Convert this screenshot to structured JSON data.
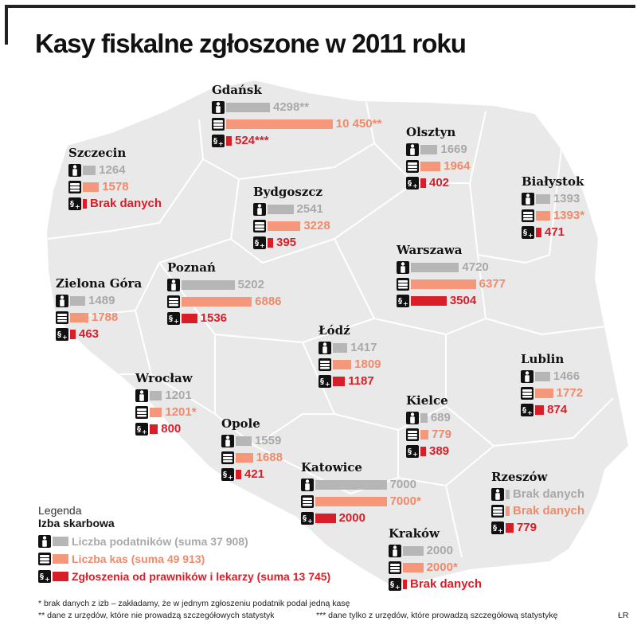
{
  "title": "Kasy fiskalne zgłoszone w 2011 roku",
  "author": "ŁR",
  "colors": {
    "taxpayers": "#b6b6b6",
    "registers": "#f4977a",
    "reports": "#d81e28",
    "map": "#e9e9e9"
  },
  "legend": {
    "title": "Legenda",
    "subtitle": "Izba skarbowa",
    "items": [
      {
        "icon": "person-icon",
        "label": "Liczba podatników (suma 37 908)"
      },
      {
        "icon": "register-icon",
        "label": "Liczba kas (suma 49 913)"
      },
      {
        "icon": "report-icon",
        "label": "Zgłoszenia od prawników i lekarzy (suma 13 745)"
      }
    ]
  },
  "footnotes": [
    "* brak danych z izb – zakładamy, że w jednym zgłoszeniu podatnik podał jedną kasę",
    "** dane z urzędów, które nie prowadzą szczegółowych statystyk",
    "*** dane tylko z urzędów, które prowadzą szczegółową statystykę"
  ],
  "chart_data": {
    "type": "bar",
    "title": "Kasy fiskalne zgłoszone w 2011 roku",
    "series_legend": [
      "Liczba podatników (suma 37 908)",
      "Liczba kas (suma 49 913)",
      "Zgłoszenia od prawników i lekarzy (suma 13 745)"
    ],
    "cities": [
      {
        "name": "Gdańsk",
        "taxpayers": 4298,
        "taxpayers_label": "4298**",
        "registers": 10450,
        "registers_label": "10 450**",
        "reports": 524,
        "reports_label": "524***"
      },
      {
        "name": "Olsztyn",
        "taxpayers": 1669,
        "taxpayers_label": "1669",
        "registers": 1964,
        "registers_label": "1964",
        "reports": 402,
        "reports_label": "402"
      },
      {
        "name": "Szczecin",
        "taxpayers": 1264,
        "taxpayers_label": "1264",
        "registers": 1578,
        "registers_label": "1578",
        "reports": null,
        "reports_label": "Brak danych"
      },
      {
        "name": "Białystok",
        "taxpayers": 1393,
        "taxpayers_label": "1393",
        "registers": 1393,
        "registers_label": "1393*",
        "reports": 471,
        "reports_label": "471"
      },
      {
        "name": "Bydgoszcz",
        "taxpayers": 2541,
        "taxpayers_label": "2541",
        "registers": 3228,
        "registers_label": "3228",
        "reports": 395,
        "reports_label": "395"
      },
      {
        "name": "Warszawa",
        "taxpayers": 4720,
        "taxpayers_label": "4720",
        "registers": 6377,
        "registers_label": "6377",
        "reports": 3504,
        "reports_label": "3504"
      },
      {
        "name": "Poznań",
        "taxpayers": 5202,
        "taxpayers_label": "5202",
        "registers": 6886,
        "registers_label": "6886",
        "reports": 1536,
        "reports_label": "1536"
      },
      {
        "name": "Zielona Góra",
        "taxpayers": 1489,
        "taxpayers_label": "1489",
        "registers": 1788,
        "registers_label": "1788",
        "reports": 463,
        "reports_label": "463"
      },
      {
        "name": "Łódź",
        "taxpayers": 1417,
        "taxpayers_label": "1417",
        "registers": 1809,
        "registers_label": "1809",
        "reports": 1187,
        "reports_label": "1187"
      },
      {
        "name": "Lublin",
        "taxpayers": 1466,
        "taxpayers_label": "1466",
        "registers": 1772,
        "registers_label": "1772",
        "reports": 874,
        "reports_label": "874"
      },
      {
        "name": "Wrocław",
        "taxpayers": 1201,
        "taxpayers_label": "1201",
        "registers": 1201,
        "registers_label": "1201*",
        "reports": 800,
        "reports_label": "800"
      },
      {
        "name": "Kielce",
        "taxpayers": 689,
        "taxpayers_label": "689",
        "registers": 779,
        "registers_label": "779",
        "reports": 389,
        "reports_label": "389"
      },
      {
        "name": "Opole",
        "taxpayers": 1559,
        "taxpayers_label": "1559",
        "registers": 1688,
        "registers_label": "1688",
        "reports": 421,
        "reports_label": "421"
      },
      {
        "name": "Katowice",
        "taxpayers": 7000,
        "taxpayers_label": "7000",
        "registers": 7000,
        "registers_label": "7000*",
        "reports": 2000,
        "reports_label": "2000"
      },
      {
        "name": "Rzeszów",
        "taxpayers": null,
        "taxpayers_label": "Brak danych",
        "registers": null,
        "registers_label": "Brak danych",
        "reports": 779,
        "reports_label": "779"
      },
      {
        "name": "Kraków",
        "taxpayers": 2000,
        "taxpayers_label": "2000",
        "registers": 2000,
        "registers_label": "2000*",
        "reports": null,
        "reports_label": "Brak danych"
      }
    ]
  }
}
